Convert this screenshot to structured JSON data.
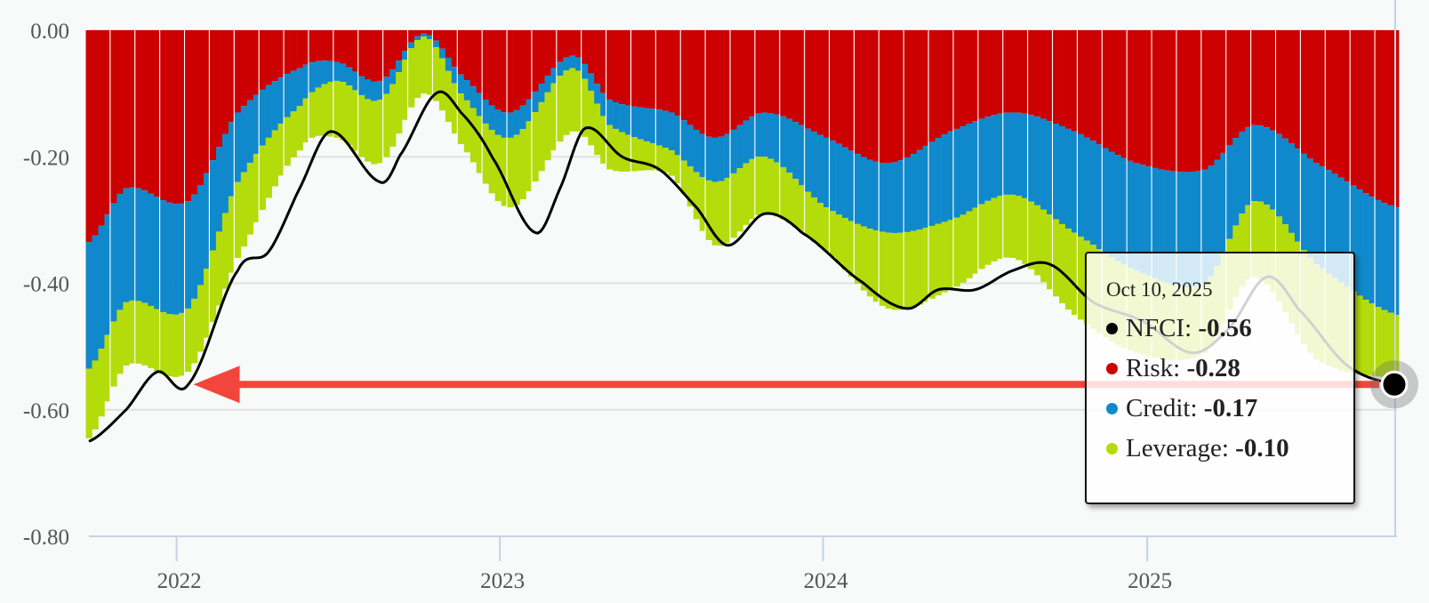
{
  "chart_data": {
    "type": "bar",
    "stacked": true,
    "y_ticks": [
      "0.00",
      "-0.20",
      "-0.40",
      "-0.60",
      "-0.80"
    ],
    "x_ticks": [
      "2022",
      "2023",
      "2024",
      "2025"
    ],
    "ylim": [
      -0.8,
      0.0
    ],
    "grid": true,
    "series": [
      {
        "name": "Risk",
        "color": "#cc0000",
        "points": [
          [
            "2021-09-24",
            -0.335
          ],
          [
            "2021-11-05",
            -0.25
          ],
          [
            "2022-01-14",
            -0.27
          ],
          [
            "2022-03-11",
            -0.13
          ],
          [
            "2022-05-20",
            -0.06
          ],
          [
            "2022-07-01",
            -0.05
          ],
          [
            "2022-08-19",
            -0.08
          ],
          [
            "2022-10-07",
            -0.005
          ],
          [
            "2022-11-18",
            -0.07
          ],
          [
            "2023-01-13",
            -0.13
          ],
          [
            "2023-03-24",
            -0.04
          ],
          [
            "2023-05-05",
            -0.11
          ],
          [
            "2023-07-14",
            -0.13
          ],
          [
            "2023-09-01",
            -0.17
          ],
          [
            "2023-10-27",
            -0.13
          ],
          [
            "2024-01-05",
            -0.17
          ],
          [
            "2024-03-15",
            -0.21
          ],
          [
            "2024-05-24",
            -0.16
          ],
          [
            "2024-08-02",
            -0.13
          ],
          [
            "2024-10-11",
            -0.16
          ],
          [
            "2024-12-20",
            -0.21
          ],
          [
            "2025-03-07",
            -0.22
          ],
          [
            "2025-05-02",
            -0.15
          ],
          [
            "2025-07-11",
            -0.21
          ],
          [
            "2025-10-10",
            -0.28
          ]
        ]
      },
      {
        "name": "Credit",
        "color": "#1089cc",
        "points": [
          [
            "2021-09-24",
            -0.2
          ],
          [
            "2021-11-05",
            -0.18
          ],
          [
            "2022-01-14",
            -0.17
          ],
          [
            "2022-03-11",
            -0.11
          ],
          [
            "2022-05-20",
            -0.06
          ],
          [
            "2022-07-01",
            -0.03
          ],
          [
            "2022-08-19",
            -0.03
          ],
          [
            "2022-10-07",
            -0.005
          ],
          [
            "2022-11-18",
            -0.03
          ],
          [
            "2023-01-13",
            -0.04
          ],
          [
            "2023-03-24",
            -0.02
          ],
          [
            "2023-05-05",
            -0.04
          ],
          [
            "2023-07-14",
            -0.06
          ],
          [
            "2023-09-01",
            -0.07
          ],
          [
            "2023-10-27",
            -0.07
          ],
          [
            "2024-01-05",
            -0.11
          ],
          [
            "2024-03-15",
            -0.11
          ],
          [
            "2024-05-24",
            -0.14
          ],
          [
            "2024-08-02",
            -0.13
          ],
          [
            "2024-10-11",
            -0.16
          ],
          [
            "2024-12-20",
            -0.17
          ],
          [
            "2025-03-07",
            -0.18
          ],
          [
            "2025-05-02",
            -0.12
          ],
          [
            "2025-07-11",
            -0.16
          ],
          [
            "2025-10-10",
            -0.17
          ]
        ]
      },
      {
        "name": "Leverage",
        "color": "#b4dc0a",
        "points": [
          [
            "2021-09-24",
            -0.11
          ],
          [
            "2021-11-05",
            -0.1
          ],
          [
            "2022-01-14",
            -0.1
          ],
          [
            "2022-03-11",
            -0.12
          ],
          [
            "2022-05-20",
            -0.07
          ],
          [
            "2022-07-01",
            -0.09
          ],
          [
            "2022-08-19",
            -0.1
          ],
          [
            "2022-10-07",
            -0.09
          ],
          [
            "2022-11-18",
            -0.08
          ],
          [
            "2023-01-13",
            -0.11
          ],
          [
            "2023-03-24",
            -0.1
          ],
          [
            "2023-05-05",
            -0.07
          ],
          [
            "2023-07-14",
            -0.04
          ],
          [
            "2023-09-01",
            -0.1
          ],
          [
            "2023-10-27",
            -0.09
          ],
          [
            "2024-01-05",
            -0.07
          ],
          [
            "2024-03-15",
            -0.12
          ],
          [
            "2024-05-24",
            -0.11
          ],
          [
            "2024-08-02",
            -0.1
          ],
          [
            "2024-10-11",
            -0.13
          ],
          [
            "2024-12-20",
            -0.13
          ],
          [
            "2025-03-07",
            -0.11
          ],
          [
            "2025-05-02",
            -0.12
          ],
          [
            "2025-07-11",
            -0.15
          ],
          [
            "2025-10-10",
            -0.1
          ]
        ]
      }
    ],
    "line": {
      "name": "NFCI",
      "color": "#000000",
      "points": [
        [
          "2021-09-24",
          -0.65
        ],
        [
          "2021-11-05",
          -0.6
        ],
        [
          "2021-12-10",
          -0.54
        ],
        [
          "2022-01-14",
          -0.56
        ],
        [
          "2022-03-11",
          -0.38
        ],
        [
          "2022-04-15",
          -0.35
        ],
        [
          "2022-05-20",
          -0.25
        ],
        [
          "2022-06-24",
          -0.16
        ],
        [
          "2022-08-19",
          -0.24
        ],
        [
          "2022-09-09",
          -0.2
        ],
        [
          "2022-10-21",
          -0.1
        ],
        [
          "2022-11-18",
          -0.13
        ],
        [
          "2022-12-23",
          -0.2
        ],
        [
          "2023-02-10",
          -0.32
        ],
        [
          "2023-03-10",
          -0.25
        ],
        [
          "2023-04-07",
          -0.155
        ],
        [
          "2023-05-19",
          -0.2
        ],
        [
          "2023-06-30",
          -0.22
        ],
        [
          "2023-08-11",
          -0.28
        ],
        [
          "2023-09-15",
          -0.34
        ],
        [
          "2023-10-27",
          -0.29
        ],
        [
          "2023-12-08",
          -0.32
        ],
        [
          "2024-02-16",
          -0.4
        ],
        [
          "2024-04-05",
          -0.44
        ],
        [
          "2024-05-10",
          -0.41
        ],
        [
          "2024-06-21",
          -0.41
        ],
        [
          "2024-08-02",
          -0.38
        ],
        [
          "2024-09-13",
          -0.37
        ],
        [
          "2024-11-01",
          -0.43
        ],
        [
          "2024-12-27",
          -0.46
        ],
        [
          "2025-02-21",
          -0.51
        ],
        [
          "2025-04-04",
          -0.47
        ],
        [
          "2025-05-16",
          -0.39
        ],
        [
          "2025-06-20",
          -0.44
        ],
        [
          "2025-08-15",
          -0.53
        ],
        [
          "2025-10-10",
          -0.56
        ]
      ]
    },
    "highlight": {
      "date": "2025-10-10",
      "value": -0.56
    }
  },
  "tooltip": {
    "date": "Oct 10, 2025",
    "rows": [
      {
        "label": "NFCI:",
        "value": "-0.56",
        "color": "#000000"
      },
      {
        "label": "Risk:",
        "value": "-0.28",
        "color": "#cc0000"
      },
      {
        "label": "Credit:",
        "value": "-0.17",
        "color": "#1089cc"
      },
      {
        "label": "Leverage:",
        "value": "-0.10",
        "color": "#b4dc0a"
      }
    ]
  },
  "colors": {
    "annotation_arrow": "#f2463c",
    "axis": "#c6d3e6",
    "grid": "#e0e0e0"
  }
}
